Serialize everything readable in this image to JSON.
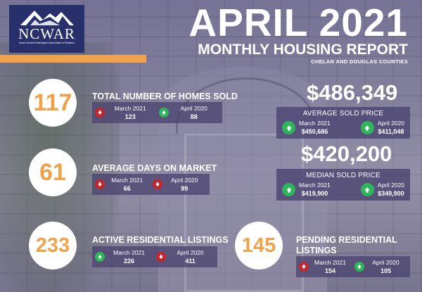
{
  "logo": {
    "name": "NCWAR",
    "subtitle": "North Central Washington Association of Realtors"
  },
  "headline": {
    "month_year": "APRIL 2021",
    "report": "MONTHLY HOUSING REPORT",
    "region": "CHELAN AND DOUGLAS COUNTIES"
  },
  "colors": {
    "accent": "#f1a24a",
    "panel": "#4b4470",
    "up": "#2fb55b",
    "down": "#c1272d"
  },
  "stats": {
    "homes_sold": {
      "value": "117",
      "title": "TOTAL NUMBER OF HOMES SOLD",
      "march": {
        "label": "March 2021",
        "value": "123",
        "trend": "down"
      },
      "april": {
        "label": "April 2020",
        "value": "88",
        "trend": "up"
      }
    },
    "days_on_market": {
      "value": "61",
      "title": "AVERAGE DAYS ON MARKET",
      "march": {
        "label": "March 2021",
        "value": "66",
        "trend": "down"
      },
      "april": {
        "label": "April 2020",
        "value": "99",
        "trend": "down"
      }
    },
    "active_listings": {
      "value": "233",
      "title": "ACTIVE RESIDENTIAL LISTINGS",
      "march": {
        "label": "March 2021",
        "value": "226",
        "trend": "up"
      },
      "april": {
        "label": "April 2020",
        "value": "411",
        "trend": "down"
      }
    },
    "pending_listings": {
      "value": "145",
      "title_line1": "PENDING RESIDENTIAL",
      "title_line2": "LISTINGS",
      "march": {
        "label": "March 2021",
        "value": "154",
        "trend": "down"
      },
      "april": {
        "label": "April 2020",
        "value": "105",
        "trend": "up"
      }
    }
  },
  "prices": {
    "average": {
      "value": "$486,349",
      "title": "AVERAGE SOLD PRICE",
      "march": {
        "label": "March 2021",
        "value": "$450,686",
        "trend": "up"
      },
      "april": {
        "label": "April 2020",
        "value": "$411,048",
        "trend": "up"
      }
    },
    "median": {
      "value": "$420,200",
      "title": "MEDIAN SOLD PRICE",
      "march": {
        "label": "March 2021",
        "value": "$419,900",
        "trend": "up"
      },
      "april": {
        "label": "April 2020",
        "value": "$349,900",
        "trend": "up"
      }
    }
  }
}
